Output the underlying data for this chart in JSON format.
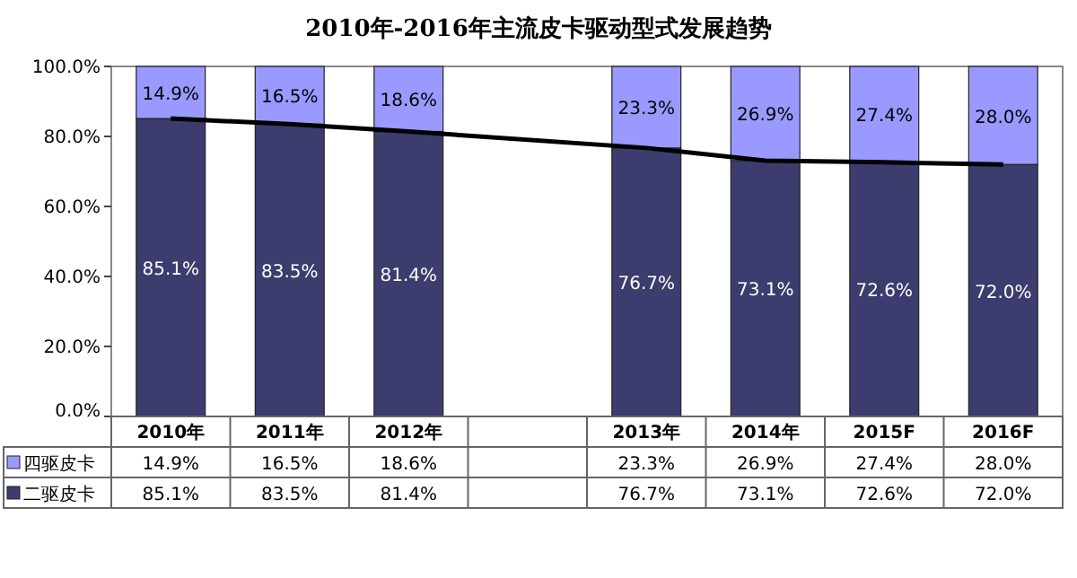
{
  "chart_data": {
    "type": "bar",
    "title": "2010年-2016年主流皮卡驱动型式发展趋势",
    "categories": [
      "2010年",
      "2011年",
      "2012年",
      null,
      "2013年",
      "2014年",
      "2015F",
      "2016F"
    ],
    "stacked": true,
    "ylim": [
      0,
      100
    ],
    "yticks": [
      {
        "value": 0,
        "label": "0.0%"
      },
      {
        "value": 20,
        "label": "20.0%"
      },
      {
        "value": 40,
        "label": "40.0%"
      },
      {
        "value": 60,
        "label": "60.0%"
      },
      {
        "value": 80,
        "label": "80.0%"
      },
      {
        "value": 100,
        "label": "100.0%"
      }
    ],
    "grid": false,
    "legend": "bottom left",
    "series": [
      {
        "name": "二驱皮卡",
        "color": "#3c3c6e",
        "values": [
          85.1,
          83.5,
          81.4,
          null,
          76.7,
          73.1,
          72.6,
          72.0
        ],
        "value_labels": [
          "85.1%",
          "83.5%",
          "81.4%",
          null,
          "76.7%",
          "73.1%",
          "72.6%",
          "72.0%"
        ]
      },
      {
        "name": "四驱皮卡",
        "color": "#9999ff",
        "values": [
          14.9,
          16.5,
          18.6,
          null,
          23.3,
          26.9,
          27.4,
          28.0
        ],
        "value_labels": [
          "14.9%",
          "16.5%",
          "18.6%",
          null,
          "23.3%",
          "26.9%",
          "27.4%",
          "28.0%"
        ]
      },
      {
        "type": "line",
        "color": "#000000",
        "values": [
          85.1,
          83.5,
          81.4,
          null,
          76.7,
          73.1,
          72.6,
          72.0
        ]
      }
    ]
  }
}
